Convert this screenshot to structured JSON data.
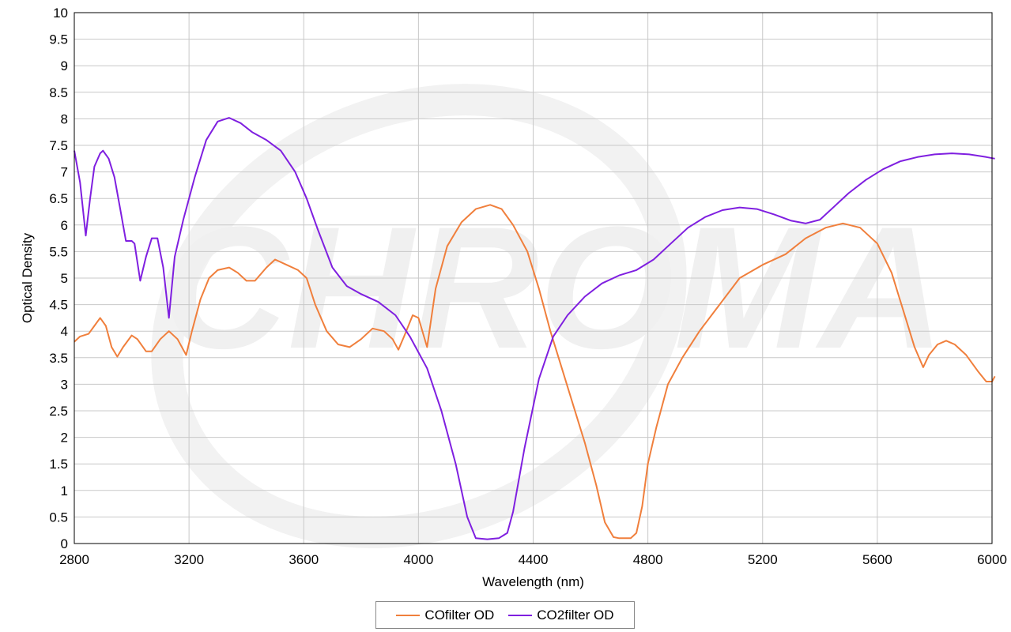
{
  "chart_data": {
    "type": "line",
    "xlabel": "Wavelength (nm)",
    "ylabel": "Optical Density",
    "xlim": [
      2800,
      6000
    ],
    "ylim": [
      0,
      10
    ],
    "x_ticks": [
      "2800",
      "3200",
      "3600",
      "4000",
      "4400",
      "4800",
      "5200",
      "5600",
      "6000"
    ],
    "y_ticks": [
      "0",
      "0.5",
      "1",
      "1.5",
      "2",
      "2.5",
      "3",
      "3.5",
      "4",
      "4.5",
      "5",
      "5.5",
      "6",
      "6.5",
      "7",
      "7.5",
      "8",
      "8.5",
      "9",
      "9.5",
      "10"
    ],
    "grid": true,
    "legend_position": "bottom",
    "watermark": "CHROMA",
    "series": [
      {
        "name": "COfilter OD",
        "color": "#f07f3c",
        "points": [
          [
            2800,
            3.8
          ],
          [
            2820,
            3.9
          ],
          [
            2850,
            3.95
          ],
          [
            2870,
            4.1
          ],
          [
            2890,
            4.25
          ],
          [
            2910,
            4.1
          ],
          [
            2930,
            3.7
          ],
          [
            2950,
            3.52
          ],
          [
            2970,
            3.7
          ],
          [
            3000,
            3.92
          ],
          [
            3020,
            3.85
          ],
          [
            3050,
            3.62
          ],
          [
            3070,
            3.62
          ],
          [
            3100,
            3.85
          ],
          [
            3130,
            4.0
          ],
          [
            3160,
            3.85
          ],
          [
            3190,
            3.55
          ],
          [
            3210,
            4.0
          ],
          [
            3240,
            4.6
          ],
          [
            3270,
            5.0
          ],
          [
            3300,
            5.15
          ],
          [
            3340,
            5.2
          ],
          [
            3370,
            5.1
          ],
          [
            3400,
            4.95
          ],
          [
            3430,
            4.95
          ],
          [
            3470,
            5.2
          ],
          [
            3500,
            5.35
          ],
          [
            3540,
            5.25
          ],
          [
            3580,
            5.15
          ],
          [
            3610,
            5.0
          ],
          [
            3640,
            4.5
          ],
          [
            3680,
            4.0
          ],
          [
            3720,
            3.75
          ],
          [
            3760,
            3.7
          ],
          [
            3800,
            3.85
          ],
          [
            3840,
            4.05
          ],
          [
            3880,
            4.0
          ],
          [
            3910,
            3.85
          ],
          [
            3930,
            3.65
          ],
          [
            3950,
            3.9
          ],
          [
            3980,
            4.3
          ],
          [
            4000,
            4.25
          ],
          [
            4030,
            3.7
          ],
          [
            4060,
            4.8
          ],
          [
            4100,
            5.6
          ],
          [
            4150,
            6.05
          ],
          [
            4200,
            6.3
          ],
          [
            4250,
            6.38
          ],
          [
            4290,
            6.3
          ],
          [
            4330,
            6.0
          ],
          [
            4380,
            5.5
          ],
          [
            4420,
            4.8
          ],
          [
            4460,
            4.0
          ],
          [
            4500,
            3.3
          ],
          [
            4540,
            2.6
          ],
          [
            4580,
            1.9
          ],
          [
            4620,
            1.1
          ],
          [
            4650,
            0.4
          ],
          [
            4680,
            0.12
          ],
          [
            4700,
            0.1
          ],
          [
            4740,
            0.1
          ],
          [
            4760,
            0.2
          ],
          [
            4780,
            0.7
          ],
          [
            4800,
            1.5
          ],
          [
            4830,
            2.2
          ],
          [
            4870,
            3.0
          ],
          [
            4920,
            3.5
          ],
          [
            4980,
            4.0
          ],
          [
            5050,
            4.5
          ],
          [
            5120,
            5.0
          ],
          [
            5200,
            5.25
          ],
          [
            5280,
            5.45
          ],
          [
            5350,
            5.75
          ],
          [
            5420,
            5.95
          ],
          [
            5480,
            6.03
          ],
          [
            5540,
            5.95
          ],
          [
            5600,
            5.65
          ],
          [
            5650,
            5.1
          ],
          [
            5690,
            4.4
          ],
          [
            5730,
            3.7
          ],
          [
            5760,
            3.32
          ],
          [
            5780,
            3.55
          ],
          [
            5810,
            3.75
          ],
          [
            5840,
            3.82
          ],
          [
            5870,
            3.75
          ],
          [
            5910,
            3.55
          ],
          [
            5950,
            3.25
          ],
          [
            5980,
            3.05
          ],
          [
            6000,
            3.05
          ],
          [
            6010,
            3.15
          ]
        ]
      },
      {
        "name": "CO2filter OD",
        "color": "#7f1fe0",
        "points": [
          [
            2800,
            7.4
          ],
          [
            2820,
            6.8
          ],
          [
            2840,
            5.8
          ],
          [
            2855,
            6.5
          ],
          [
            2870,
            7.1
          ],
          [
            2890,
            7.35
          ],
          [
            2900,
            7.4
          ],
          [
            2920,
            7.25
          ],
          [
            2940,
            6.9
          ],
          [
            2960,
            6.3
          ],
          [
            2980,
            5.7
          ],
          [
            3000,
            5.7
          ],
          [
            3010,
            5.65
          ],
          [
            3030,
            4.95
          ],
          [
            3050,
            5.4
          ],
          [
            3070,
            5.75
          ],
          [
            3090,
            5.75
          ],
          [
            3110,
            5.2
          ],
          [
            3130,
            4.25
          ],
          [
            3150,
            5.4
          ],
          [
            3180,
            6.1
          ],
          [
            3220,
            6.9
          ],
          [
            3260,
            7.6
          ],
          [
            3300,
            7.95
          ],
          [
            3340,
            8.02
          ],
          [
            3380,
            7.92
          ],
          [
            3420,
            7.75
          ],
          [
            3470,
            7.6
          ],
          [
            3520,
            7.4
          ],
          [
            3570,
            7.0
          ],
          [
            3610,
            6.5
          ],
          [
            3650,
            5.9
          ],
          [
            3700,
            5.2
          ],
          [
            3750,
            4.85
          ],
          [
            3800,
            4.7
          ],
          [
            3860,
            4.55
          ],
          [
            3920,
            4.3
          ],
          [
            3970,
            3.9
          ],
          [
            4030,
            3.3
          ],
          [
            4080,
            2.5
          ],
          [
            4130,
            1.5
          ],
          [
            4170,
            0.5
          ],
          [
            4200,
            0.1
          ],
          [
            4240,
            0.08
          ],
          [
            4280,
            0.1
          ],
          [
            4310,
            0.2
          ],
          [
            4330,
            0.6
          ],
          [
            4370,
            1.8
          ],
          [
            4420,
            3.1
          ],
          [
            4470,
            3.9
          ],
          [
            4520,
            4.3
          ],
          [
            4580,
            4.65
          ],
          [
            4640,
            4.9
          ],
          [
            4700,
            5.05
          ],
          [
            4760,
            5.15
          ],
          [
            4820,
            5.35
          ],
          [
            4880,
            5.65
          ],
          [
            4940,
            5.95
          ],
          [
            5000,
            6.15
          ],
          [
            5060,
            6.28
          ],
          [
            5120,
            6.33
          ],
          [
            5180,
            6.3
          ],
          [
            5240,
            6.2
          ],
          [
            5300,
            6.08
          ],
          [
            5350,
            6.03
          ],
          [
            5400,
            6.1
          ],
          [
            5450,
            6.35
          ],
          [
            5500,
            6.6
          ],
          [
            5560,
            6.85
          ],
          [
            5620,
            7.05
          ],
          [
            5680,
            7.2
          ],
          [
            5740,
            7.28
          ],
          [
            5800,
            7.33
          ],
          [
            5860,
            7.35
          ],
          [
            5920,
            7.33
          ],
          [
            5980,
            7.28
          ],
          [
            6010,
            7.25
          ]
        ]
      }
    ]
  }
}
